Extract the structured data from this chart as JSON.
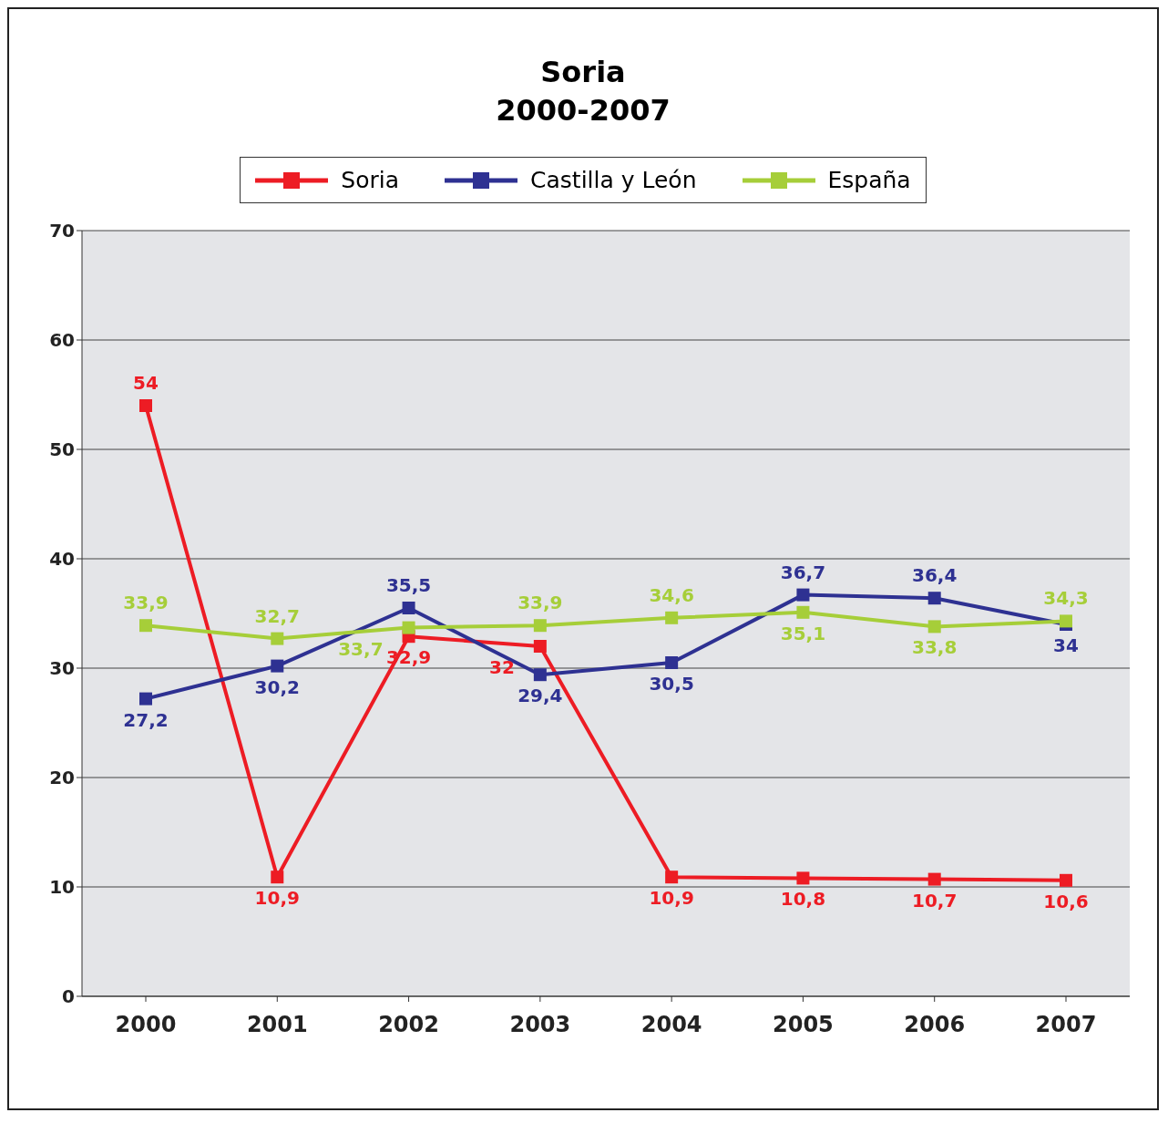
{
  "chart_data": {
    "type": "line",
    "title": "Soria",
    "subtitle": "2000-2007",
    "categories": [
      "2000",
      "2001",
      "2002",
      "2003",
      "2004",
      "2005",
      "2006",
      "2007"
    ],
    "series": [
      {
        "name": "Soria",
        "color": "#ed1c24",
        "values": [
          54,
          10.9,
          32.9,
          32,
          10.9,
          10.8,
          10.7,
          10.6
        ],
        "value_labels": [
          "54",
          "10,9",
          "32,9",
          "32",
          "10,9",
          "10,8",
          "10,7",
          "10,6"
        ]
      },
      {
        "name": "Castilla y León",
        "color": "#2e3192",
        "values": [
          27.2,
          30.2,
          35.5,
          29.4,
          30.5,
          36.7,
          36.4,
          34
        ],
        "value_labels": [
          "27,2",
          "30,2",
          "35,5",
          "29,4",
          "30,5",
          "36,7",
          "36,4",
          "34"
        ]
      },
      {
        "name": "España",
        "color": "#a6ce39",
        "values": [
          33.9,
          32.7,
          33.7,
          33.9,
          34.6,
          35.1,
          33.8,
          34.3
        ],
        "value_labels": [
          "33,9",
          "32,7",
          "33,7",
          "33,9",
          "34,6",
          "35,1",
          "33,8",
          "34,3"
        ]
      }
    ],
    "ylim": [
      0,
      70
    ],
    "yticks": [
      0,
      10,
      20,
      30,
      40,
      50,
      60,
      70
    ],
    "grid": "y",
    "legend": "top",
    "marker": "square",
    "line_style": "solid"
  }
}
